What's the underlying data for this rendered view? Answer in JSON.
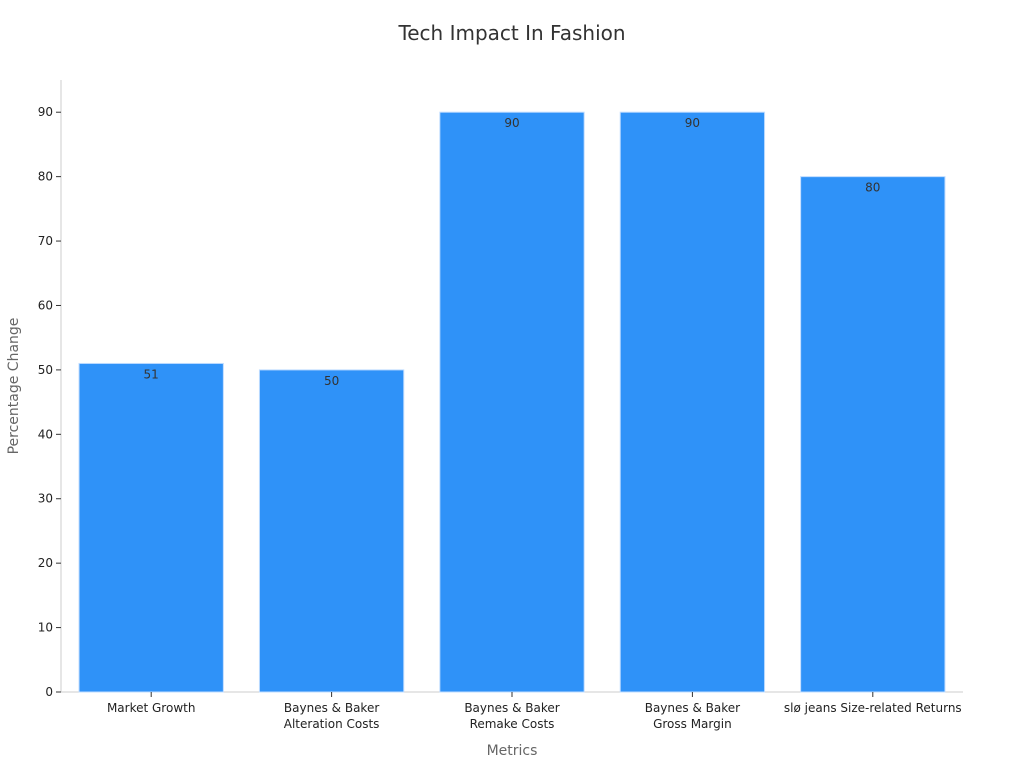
{
  "chart_data": {
    "type": "bar",
    "title": "Tech Impact In Fashion",
    "xlabel": "Metrics",
    "ylabel": "Percentage Change",
    "categories": [
      [
        "Market Growth"
      ],
      [
        "Baynes & Baker",
        "Alteration Costs"
      ],
      [
        "Baynes & Baker",
        "Remake Costs"
      ],
      [
        "Baynes & Baker",
        "Gross Margin"
      ],
      [
        "slø jeans Size-related Returns"
      ]
    ],
    "values": [
      51,
      50,
      90,
      90,
      80
    ],
    "data_labels": [
      "51",
      "50",
      "90",
      "90",
      "80"
    ],
    "yticks": [
      0,
      10,
      20,
      30,
      40,
      50,
      60,
      70,
      80,
      90
    ],
    "ylim": [
      0,
      95
    ],
    "grid": false,
    "legend": "none",
    "bar_color": "#2f92f8"
  }
}
